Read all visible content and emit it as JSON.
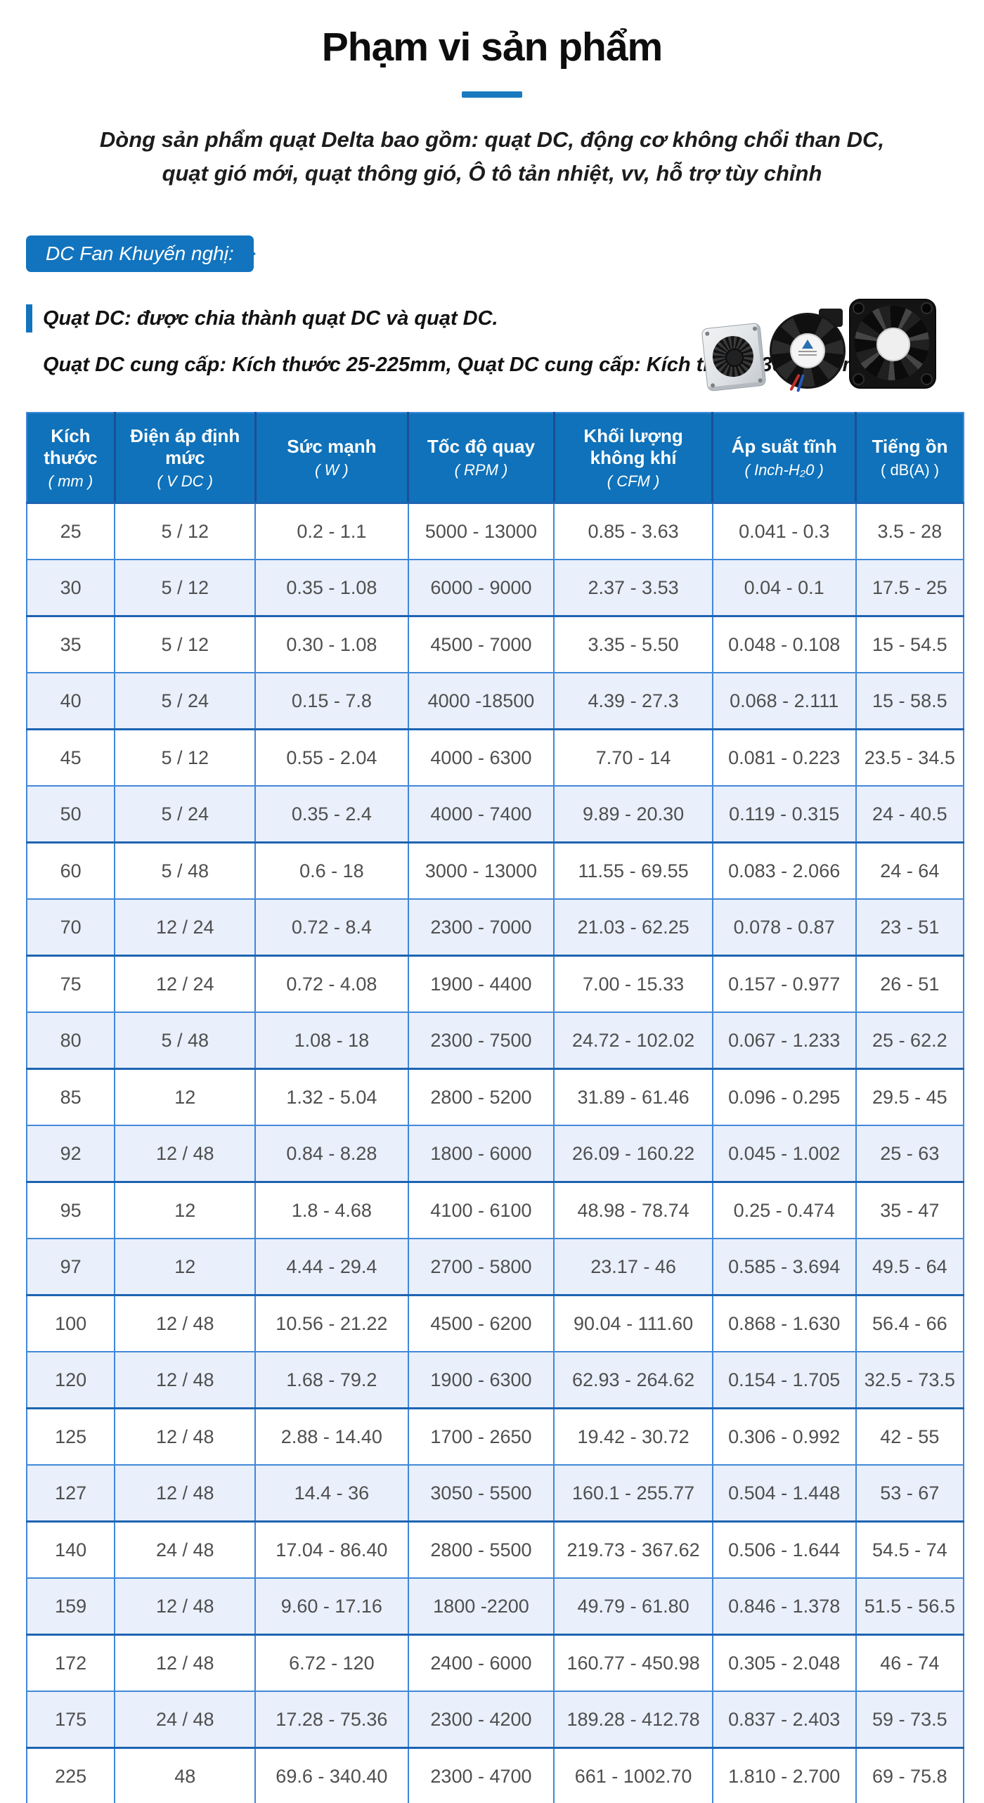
{
  "header": {
    "title": "Phạm vi sản phẩm",
    "subtitle_line1": "Dòng sản phẩm quạt Delta bao gồm: quạt DC, động cơ không chổi than DC,",
    "subtitle_line2": "quạt gió mới, quạt thông gió, Ô tô tản nhiệt, vv, hỗ trợ tùy chỉnh"
  },
  "ribbon": {
    "label": "DC Fan Khuyến nghị:"
  },
  "notes": {
    "bullet": "Quạt DC: được chia thành quạt DC và quạt DC.",
    "sizes_line": "Quạt DC cung cấp: Kích thước 25-225mm, Quạt DC cung cấp: Kích thước 30-172mm"
  },
  "images": {
    "fans": [
      "silver-blower-fan",
      "black-blower-fan",
      "black-axial-fan"
    ]
  },
  "colors": {
    "primary_blue": "#0f72ba",
    "ribbon_blue": "#1274be",
    "dash_blue": "#1a7abf",
    "row_alt_blue": "#e9effb",
    "cell_border_blue": "#3f88da",
    "dark_border_blue": "#1d64b2",
    "table_text": "#4f4f4f"
  },
  "table": {
    "columns": [
      {
        "name": "Kích thước",
        "unit": "( mm )",
        "unit_italic": true
      },
      {
        "name": "Điện áp định mức",
        "unit": "( V DC )",
        "unit_italic": true
      },
      {
        "name": "Sức mạnh",
        "unit": "( W )",
        "unit_italic": true
      },
      {
        "name": "Tốc độ quay",
        "unit": "( RPM )",
        "unit_italic": true
      },
      {
        "name": "Khối lượng không khí",
        "unit": "( CFM )",
        "unit_italic": true
      },
      {
        "name": "Áp suất tĩnh",
        "unit": "( Inch-H₂0 )",
        "unit_italic": true
      },
      {
        "name": "Tiếng ồn",
        "unit": "( dB(A) )",
        "unit_italic": false
      }
    ],
    "rows": [
      [
        "25",
        "5 / 12",
        "0.2 - 1.1",
        "5000 - 13000",
        "0.85 - 3.63",
        "0.041 - 0.3",
        "3.5 - 28"
      ],
      [
        "30",
        "5 / 12",
        "0.35 - 1.08",
        "6000 - 9000",
        "2.37 - 3.53",
        "0.04 - 0.1",
        "17.5 - 25"
      ],
      [
        "35",
        "5 / 12",
        "0.30 - 1.08",
        "4500 - 7000",
        "3.35 - 5.50",
        "0.048 - 0.108",
        "15 - 54.5"
      ],
      [
        "40",
        "5 / 24",
        "0.15 - 7.8",
        "4000 -18500",
        "4.39 - 27.3",
        "0.068 - 2.111",
        "15 - 58.5"
      ],
      [
        "45",
        "5 / 12",
        "0.55 - 2.04",
        "4000 - 6300",
        "7.70 - 14",
        "0.081 - 0.223",
        "23.5 - 34.5"
      ],
      [
        "50",
        "5 / 24",
        "0.35 - 2.4",
        "4000 - 7400",
        "9.89 - 20.30",
        "0.119 - 0.315",
        "24 - 40.5"
      ],
      [
        "60",
        "5 / 48",
        "0.6 - 18",
        "3000 - 13000",
        "11.55 - 69.55",
        "0.083 - 2.066",
        "24 - 64"
      ],
      [
        "70",
        "12 / 24",
        "0.72 - 8.4",
        "2300 - 7000",
        "21.03 - 62.25",
        "0.078 - 0.87",
        "23 - 51"
      ],
      [
        "75",
        "12 / 24",
        "0.72 - 4.08",
        "1900 - 4400",
        "7.00 - 15.33",
        "0.157 - 0.977",
        "26 - 51"
      ],
      [
        "80",
        "5 / 48",
        "1.08 - 18",
        "2300 - 7500",
        "24.72 - 102.02",
        "0.067 - 1.233",
        "25 - 62.2"
      ],
      [
        "85",
        "12",
        "1.32 - 5.04",
        "2800 - 5200",
        "31.89 - 61.46",
        "0.096 - 0.295",
        "29.5 - 45"
      ],
      [
        "92",
        "12 / 48",
        "0.84 - 8.28",
        "1800 - 6000",
        "26.09 - 160.22",
        "0.045 - 1.002",
        "25 - 63"
      ],
      [
        "95",
        "12",
        "1.8 - 4.68",
        "4100 - 6100",
        "48.98 - 78.74",
        "0.25 - 0.474",
        "35 - 47"
      ],
      [
        "97",
        "12",
        "4.44 - 29.4",
        "2700 - 5800",
        "23.17 - 46",
        "0.585 - 3.694",
        "49.5 - 64"
      ],
      [
        "100",
        "12 / 48",
        "10.56 - 21.22",
        "4500 - 6200",
        "90.04 - 111.60",
        "0.868 - 1.630",
        "56.4 - 66"
      ],
      [
        "120",
        "12 / 48",
        "1.68 - 79.2",
        "1900 - 6300",
        "62.93 - 264.62",
        "0.154 - 1.705",
        "32.5 - 73.5"
      ],
      [
        "125",
        "12 / 48",
        "2.88 - 14.40",
        "1700 - 2650",
        "19.42 - 30.72",
        "0.306 - 0.992",
        "42 - 55"
      ],
      [
        "127",
        "12 / 48",
        "14.4 - 36",
        "3050 - 5500",
        "160.1 - 255.77",
        "0.504 - 1.448",
        "53 - 67"
      ],
      [
        "140",
        "24 / 48",
        "17.04 - 86.40",
        "2800 - 5500",
        "219.73 - 367.62",
        "0.506 - 1.644",
        "54.5 - 74"
      ],
      [
        "159",
        "12 / 48",
        "9.60 - 17.16",
        "1800 -2200",
        "49.79 - 61.80",
        "0.846 - 1.378",
        "51.5 - 56.5"
      ],
      [
        "172",
        "12 / 48",
        "6.72 - 120",
        "2400 - 6000",
        "160.77 - 450.98",
        "0.305 - 2.048",
        "46 - 74"
      ],
      [
        "175",
        "24 / 48",
        "17.28 - 75.36",
        "2300 - 4200",
        "189.28 - 412.78",
        "0.837 - 2.403",
        "59 - 73.5"
      ],
      [
        "225",
        "48",
        "69.6 - 340.40",
        "2300 - 4700",
        "661 - 1002.70",
        "1.810 - 2.700",
        "69 - 75.8"
      ]
    ]
  }
}
